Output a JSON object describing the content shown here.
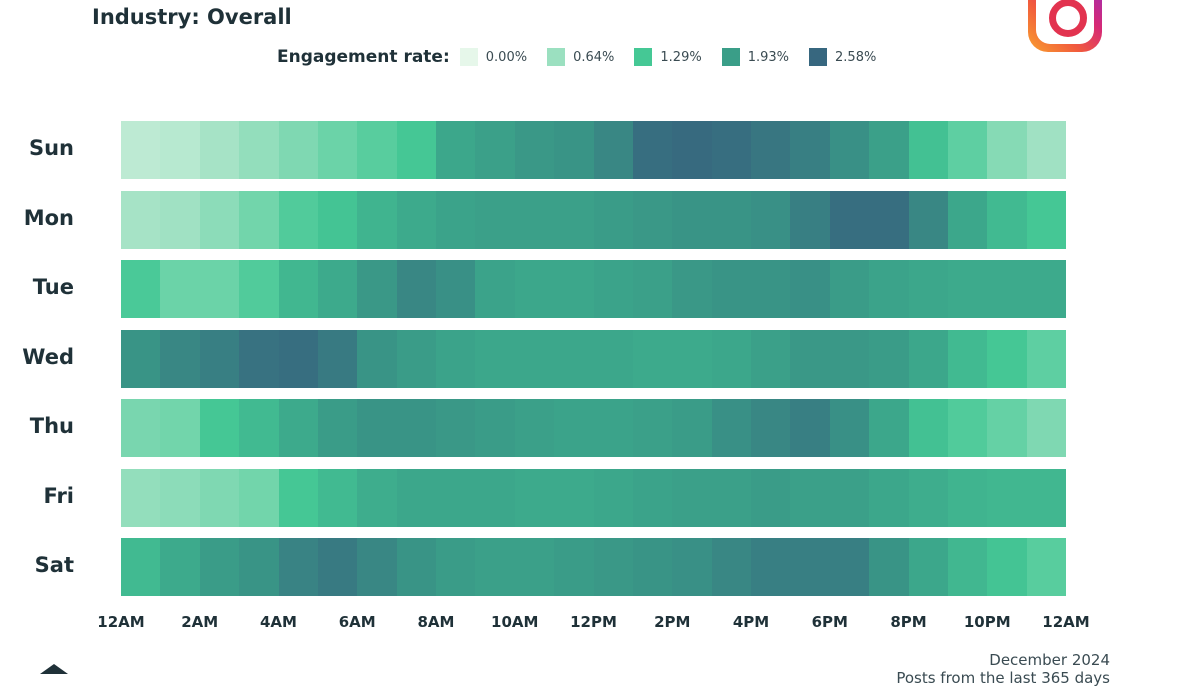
{
  "header": {
    "title": "Industry: Overall",
    "legend_label": "Engagement rate:",
    "logo_icon": "instagram-icon"
  },
  "footer": {
    "date": "December 2024",
    "note": "Posts from the last 365 days"
  },
  "chart_data": {
    "type": "heatmap",
    "title": "Industry: Overall",
    "legend_title": "Engagement rate:",
    "legend": [
      {
        "label": "0.00%",
        "value": 0.0,
        "color": "#e6f7ea"
      },
      {
        "label": "0.64%",
        "value": 0.64,
        "color": "#9be0c0"
      },
      {
        "label": "1.29%",
        "value": 1.29,
        "color": "#45c895"
      },
      {
        "label": "1.93%",
        "value": 1.93,
        "color": "#3a9e88"
      },
      {
        "label": "2.58%",
        "value": 2.58,
        "color": "#37677f"
      }
    ],
    "x_ticks": [
      "12AM",
      "2AM",
      "4AM",
      "6AM",
      "8AM",
      "10AM",
      "12PM",
      "2PM",
      "4PM",
      "6PM",
      "8PM",
      "10PM",
      "12AM"
    ],
    "rows": [
      "Sun",
      "Mon",
      "Tue",
      "Wed",
      "Thu",
      "Fri",
      "Sat"
    ],
    "hours_per_row": 24,
    "values": [
      [
        0.35,
        0.4,
        0.55,
        0.7,
        0.85,
        1.0,
        1.15,
        1.3,
        1.8,
        1.9,
        2.0,
        2.05,
        2.2,
        2.5,
        2.55,
        2.5,
        2.4,
        2.3,
        2.1,
        1.9,
        1.4,
        1.1,
        0.8,
        0.6
      ],
      [
        0.55,
        0.6,
        0.75,
        0.95,
        1.2,
        1.35,
        1.6,
        1.75,
        1.85,
        1.9,
        1.9,
        1.9,
        1.95,
        2.0,
        2.05,
        2.05,
        2.1,
        2.3,
        2.5,
        2.5,
        2.2,
        1.8,
        1.5,
        1.3
      ],
      [
        1.25,
        1.0,
        1.0,
        1.2,
        1.55,
        1.75,
        2.0,
        2.2,
        2.1,
        1.85,
        1.8,
        1.8,
        1.85,
        1.9,
        2.0,
        2.05,
        2.05,
        2.1,
        1.95,
        1.85,
        1.8,
        1.75,
        1.75,
        1.75
      ],
      [
        2.05,
        2.2,
        2.3,
        2.45,
        2.5,
        2.35,
        2.05,
        1.95,
        1.85,
        1.8,
        1.8,
        1.8,
        1.8,
        1.75,
        1.75,
        1.8,
        1.9,
        2.0,
        2.0,
        1.95,
        1.8,
        1.5,
        1.3,
        1.1
      ],
      [
        0.9,
        0.95,
        1.3,
        1.5,
        1.75,
        1.95,
        2.05,
        2.05,
        2.0,
        1.95,
        1.9,
        1.85,
        1.85,
        1.9,
        1.95,
        2.1,
        2.2,
        2.3,
        2.1,
        1.8,
        1.4,
        1.2,
        1.05,
        0.85
      ],
      [
        0.7,
        0.75,
        0.85,
        0.95,
        1.3,
        1.5,
        1.7,
        1.8,
        1.8,
        1.8,
        1.75,
        1.75,
        1.8,
        1.85,
        1.9,
        1.9,
        1.95,
        1.9,
        1.9,
        1.8,
        1.7,
        1.6,
        1.55,
        1.55
      ],
      [
        1.5,
        1.75,
        1.95,
        2.05,
        2.25,
        2.35,
        2.2,
        2.05,
        1.95,
        1.9,
        1.9,
        1.95,
        2.0,
        2.05,
        2.1,
        2.2,
        2.3,
        2.3,
        2.3,
        2.05,
        1.8,
        1.55,
        1.35,
        1.15
      ]
    ]
  }
}
